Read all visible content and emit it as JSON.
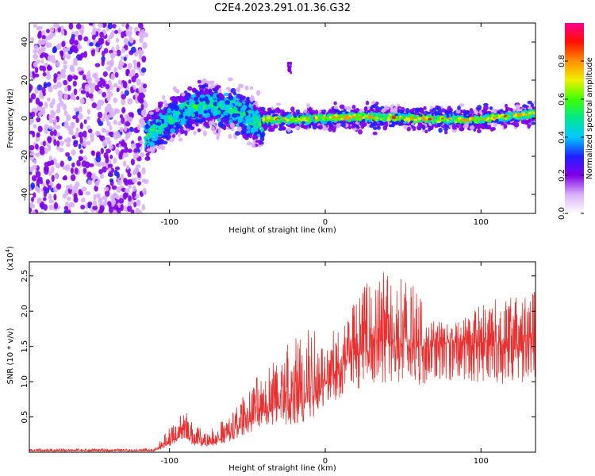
{
  "chart_data": [
    {
      "type": "heatmap",
      "title": "C2E4.2023.291.01.36.G32",
      "xlabel": "Height of straight line (km)",
      "ylabel": "Frequency (Hz)",
      "xlim": [
        -190,
        135
      ],
      "ylim": [
        -50,
        50
      ],
      "xticks": [
        -100,
        0,
        100
      ],
      "yticks": [
        -40,
        -20,
        0,
        20,
        40
      ],
      "colorbar": {
        "label": "Normalized spectral amplitude",
        "range": [
          0,
          1
        ],
        "ticks": [
          "0.0",
          "0.2",
          "0.4",
          "0.6",
          "0.8"
        ],
        "colors": [
          "#ffffff",
          "#d8b0f8",
          "#8000e8",
          "#2020ff",
          "#00c8ff",
          "#00e890",
          "#40ff00",
          "#f0f000",
          "#ff9000",
          "#ff1000",
          "#ff0090"
        ]
      },
      "regions": [
        {
          "description": "noise",
          "x": [
            -190,
            -115
          ],
          "freq": [
            -50,
            50
          ],
          "amplitude": 0.15
        },
        {
          "description": "transition",
          "x": [
            -115,
            -40
          ],
          "freq_center": [
            -10,
            5
          ],
          "spread_hz": 10,
          "amplitude": 0.3
        },
        {
          "description": "signal line",
          "x": [
            -40,
            135
          ],
          "freq_center": 0,
          "spread_hz": 3,
          "amplitude": 0.75
        },
        {
          "description": "isolated patch",
          "x": [
            -24,
            -22
          ],
          "freq": [
            24,
            30
          ],
          "amplitude": 0.2
        }
      ],
      "grid": false
    },
    {
      "type": "line",
      "title": "",
      "xlabel": "Height of straight line (km)",
      "ylabel": "SNR (10 * v/v)",
      "multiplier": "(x10",
      "multiplier_exp": "4",
      "multiplier_close": ")",
      "xlim": [
        -190,
        135
      ],
      "ylim": [
        0,
        2.7
      ],
      "xticks": [
        -100,
        0,
        100
      ],
      "yticks": [
        "0.5",
        "1.0",
        "1.5",
        "2.0",
        "2.5"
      ],
      "color": "#e83030",
      "envelope": {
        "x": [
          -190,
          -110,
          -100,
          -90,
          -85,
          -75,
          -60,
          -50,
          -40,
          -30,
          -20,
          -10,
          0,
          10,
          20,
          30,
          40,
          50,
          60,
          70,
          80,
          90,
          100,
          110,
          120,
          135
        ],
        "base": [
          0.02,
          0.02,
          0.12,
          0.3,
          0.15,
          0.1,
          0.25,
          0.4,
          0.55,
          0.6,
          0.6,
          0.7,
          0.95,
          1.15,
          1.35,
          1.45,
          1.5,
          1.5,
          1.45,
          1.5,
          1.55,
          1.55,
          1.5,
          1.5,
          1.45,
          1.4
        ],
        "peak": [
          0.05,
          0.05,
          0.35,
          0.6,
          0.4,
          0.3,
          0.55,
          0.9,
          1.2,
          1.45,
          1.6,
          1.8,
          1.55,
          1.9,
          2.2,
          2.5,
          2.65,
          2.55,
          2.25,
          1.9,
          1.8,
          1.95,
          2.15,
          2.2,
          2.2,
          2.3
        ]
      },
      "grid": false
    }
  ]
}
